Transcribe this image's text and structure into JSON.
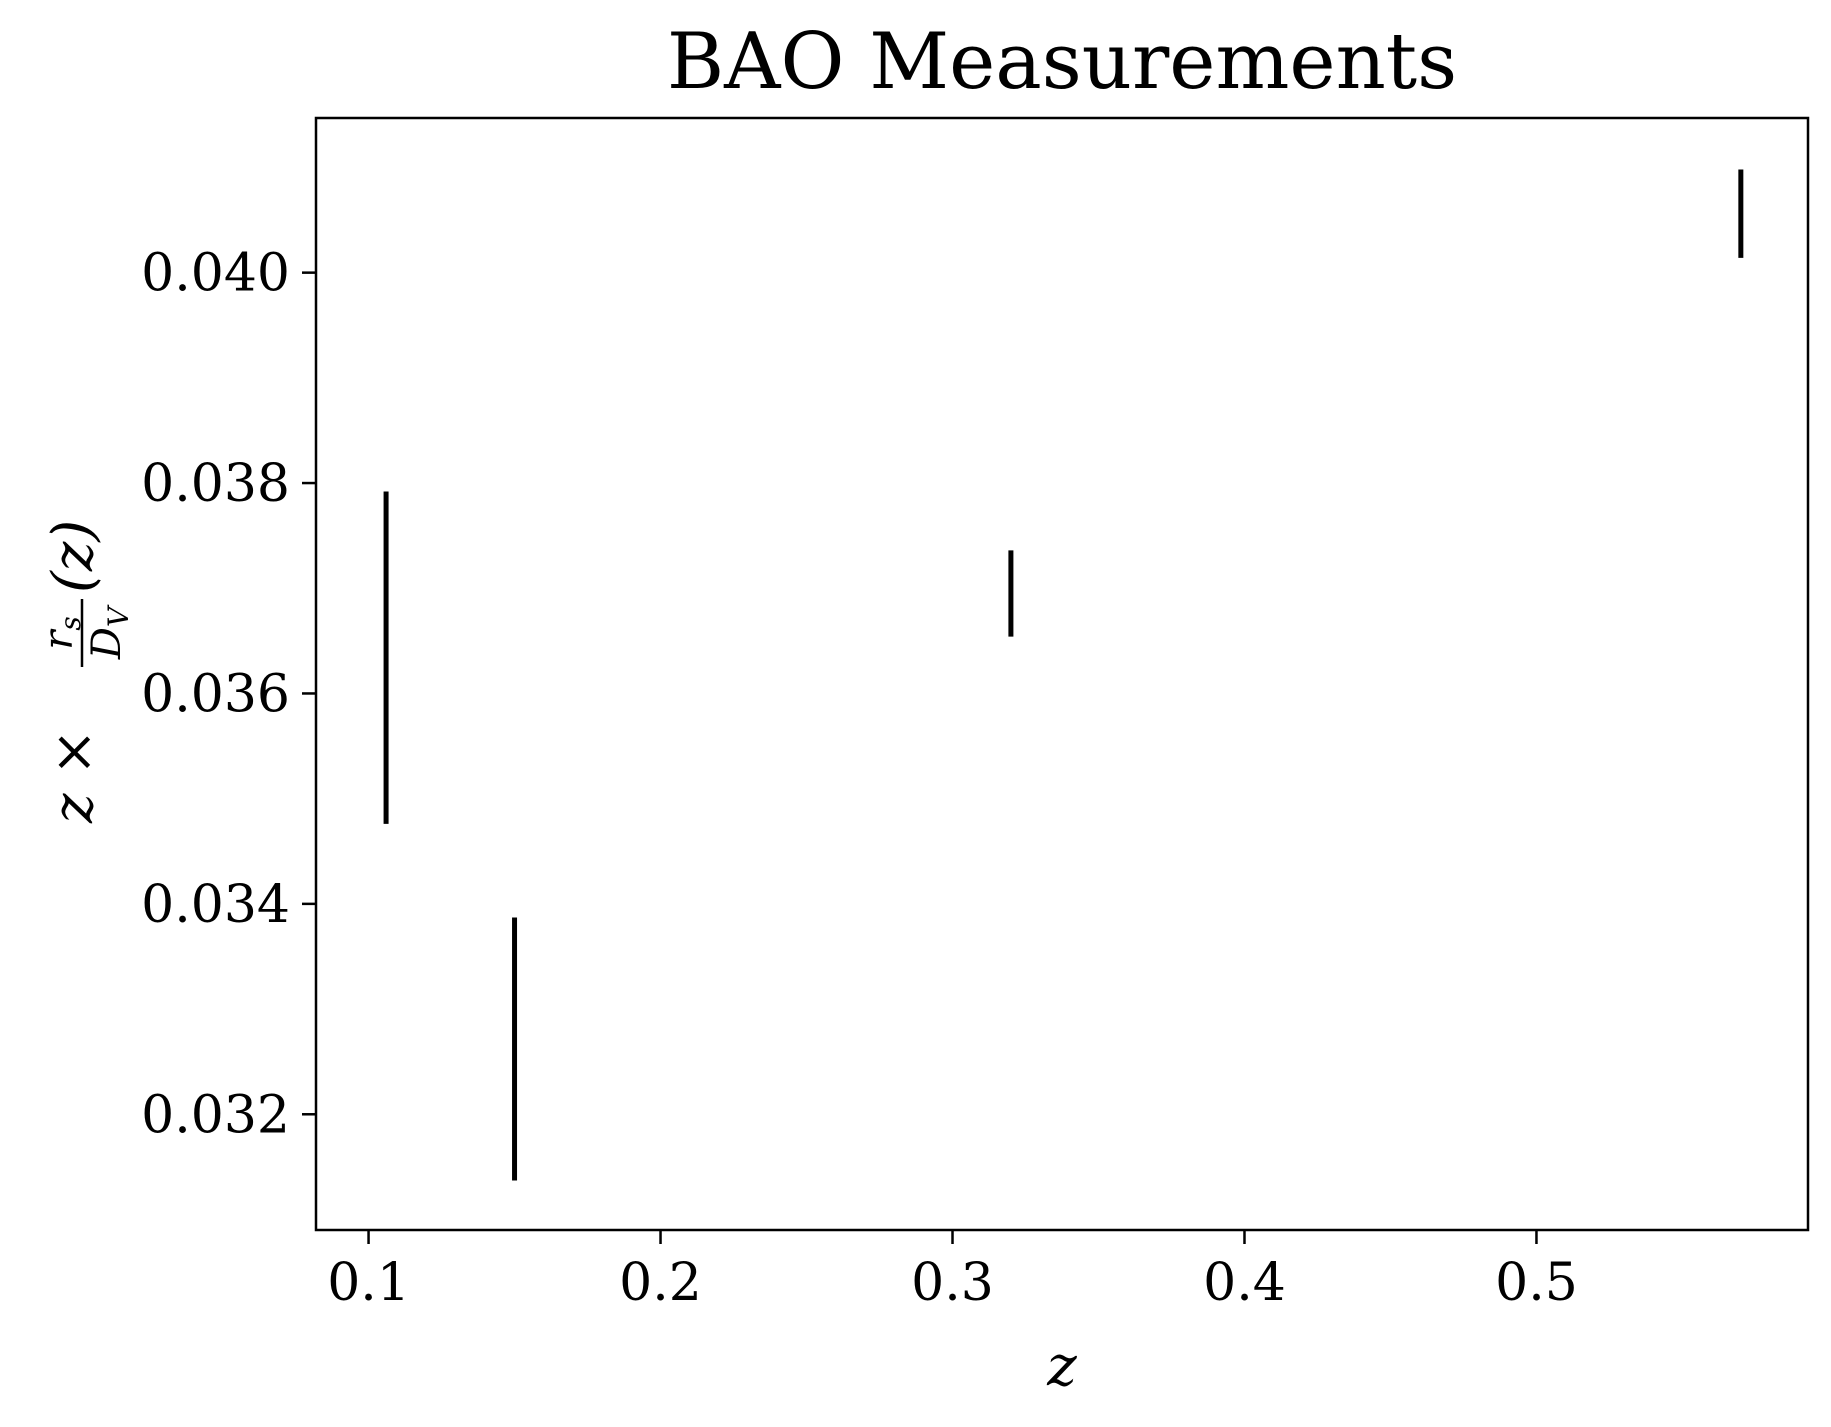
{
  "chart_data": {
    "type": "errorbar",
    "title": "BAO Measurements",
    "xlabel": "z",
    "ylabel": {
      "prefix": "z ×",
      "numerator": "r",
      "numerator_sub": "s",
      "denominator": "D",
      "denominator_sub": "V",
      "suffix": "(z)"
    },
    "xlim": [
      0.082,
      0.593
    ],
    "ylim": [
      0.0309,
      0.04147
    ],
    "xticks": [
      0.1,
      0.2,
      0.3,
      0.4,
      0.5
    ],
    "xtick_labels": [
      "0.1",
      "0.2",
      "0.3",
      "0.4",
      "0.5"
    ],
    "yticks": [
      0.032,
      0.034,
      0.036,
      0.038,
      0.04
    ],
    "ytick_labels": [
      "0.032",
      "0.034",
      "0.036",
      "0.038",
      "0.040"
    ],
    "grid": false,
    "color": "#000000",
    "points": [
      {
        "x": 0.106,
        "y": 0.03634,
        "yerr": 0.00158
      },
      {
        "x": 0.15,
        "y": 0.03262,
        "yerr": 0.00125
      },
      {
        "x": 0.32,
        "y": 0.03695,
        "yerr": 0.00041
      },
      {
        "x": 0.57,
        "y": 0.04056,
        "yerr": 0.00042
      }
    ]
  }
}
